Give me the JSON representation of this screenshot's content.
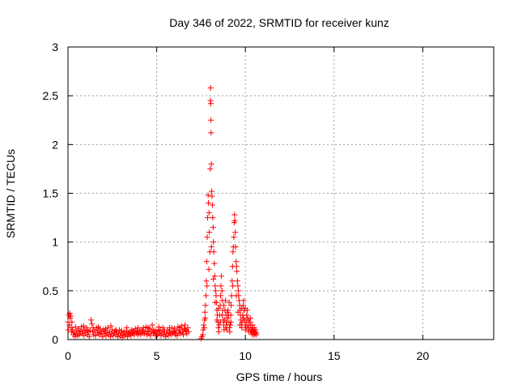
{
  "chart_data": {
    "type": "scatter",
    "title": "Day 346 of 2022, SRMTID for receiver kunz",
    "xlabel": "GPS time / hours",
    "ylabel": "SRMTID / TECUs",
    "xlim": [
      0,
      24
    ],
    "ylim": [
      0,
      3
    ],
    "xticks": [
      0,
      5,
      10,
      15,
      20
    ],
    "yticks": [
      0,
      0.5,
      1,
      1.5,
      2,
      2.5,
      3
    ],
    "ytick_labels": [
      "0",
      "0.5",
      "1",
      "1.5",
      "2",
      "2.5",
      "3"
    ],
    "grid": true,
    "marker": "+",
    "color": "#ff0000",
    "series": [
      {
        "name": "SRMTID",
        "points": [
          [
            0.0,
            0.18
          ],
          [
            0.05,
            0.25
          ],
          [
            0.1,
            0.27
          ],
          [
            0.12,
            0.22
          ],
          [
            0.15,
            0.24
          ],
          [
            0.18,
            0.12
          ],
          [
            0.2,
            0.08
          ],
          [
            0.25,
            0.1
          ],
          [
            0.3,
            0.05
          ],
          [
            0.35,
            0.07
          ],
          [
            0.4,
            0.03
          ],
          [
            0.45,
            0.06
          ],
          [
            0.5,
            0.09
          ],
          [
            0.55,
            0.04
          ],
          [
            0.6,
            0.11
          ],
          [
            0.65,
            0.05
          ],
          [
            0.7,
            0.08
          ],
          [
            0.75,
            0.13
          ],
          [
            0.8,
            0.06
          ],
          [
            0.85,
            0.09
          ],
          [
            0.9,
            0.04
          ],
          [
            0.95,
            0.1
          ],
          [
            1.0,
            0.07
          ],
          [
            1.05,
            0.12
          ],
          [
            1.1,
            0.05
          ],
          [
            1.15,
            0.08
          ],
          [
            1.2,
            0.03
          ],
          [
            1.25,
            0.09
          ],
          [
            1.3,
            0.2
          ],
          [
            1.35,
            0.16
          ],
          [
            1.4,
            0.08
          ],
          [
            1.45,
            0.05
          ],
          [
            1.5,
            0.1
          ],
          [
            1.55,
            0.04
          ],
          [
            1.6,
            0.12
          ],
          [
            1.65,
            0.07
          ],
          [
            1.7,
            0.09
          ],
          [
            1.75,
            0.05
          ],
          [
            1.8,
            0.11
          ],
          [
            1.85,
            0.06
          ],
          [
            1.9,
            0.08
          ],
          [
            1.95,
            0.03
          ],
          [
            2.0,
            0.1
          ],
          [
            2.05,
            0.06
          ],
          [
            2.1,
            0.09
          ],
          [
            2.15,
            0.04
          ],
          [
            2.2,
            0.07
          ],
          [
            2.25,
            0.12
          ],
          [
            2.3,
            0.05
          ],
          [
            2.35,
            0.08
          ],
          [
            2.4,
            0.03
          ],
          [
            2.45,
            0.06
          ],
          [
            2.5,
            0.1
          ],
          [
            2.55,
            0.04
          ],
          [
            2.6,
            0.07
          ],
          [
            2.65,
            0.09
          ],
          [
            2.7,
            0.05
          ],
          [
            2.75,
            0.08
          ],
          [
            2.8,
            0.03
          ],
          [
            2.85,
            0.06
          ],
          [
            2.9,
            0.1
          ],
          [
            2.95,
            0.04
          ],
          [
            3.0,
            0.07
          ],
          [
            3.05,
            0.02
          ],
          [
            3.1,
            0.05
          ],
          [
            3.15,
            0.08
          ],
          [
            3.2,
            0.04
          ],
          [
            3.25,
            0.06
          ],
          [
            3.3,
            0.09
          ],
          [
            3.35,
            0.03
          ],
          [
            3.4,
            0.07
          ],
          [
            3.45,
            0.05
          ],
          [
            3.5,
            0.08
          ],
          [
            3.55,
            0.04
          ],
          [
            3.6,
            0.1
          ],
          [
            3.65,
            0.06
          ],
          [
            3.7,
            0.09
          ],
          [
            3.75,
            0.05
          ],
          [
            3.8,
            0.11
          ],
          [
            3.85,
            0.07
          ],
          [
            3.9,
            0.08
          ],
          [
            3.95,
            0.12
          ],
          [
            4.0,
            0.06
          ],
          [
            4.05,
            0.09
          ],
          [
            4.1,
            0.05
          ],
          [
            4.15,
            0.1
          ],
          [
            4.2,
            0.07
          ],
          [
            4.25,
            0.12
          ],
          [
            4.3,
            0.06
          ],
          [
            4.35,
            0.08
          ],
          [
            4.4,
            0.13
          ],
          [
            4.45,
            0.05
          ],
          [
            4.5,
            0.09
          ],
          [
            4.55,
            0.06
          ],
          [
            4.6,
            0.11
          ],
          [
            4.65,
            0.04
          ],
          [
            4.7,
            0.08
          ],
          [
            4.75,
            0.15
          ],
          [
            4.8,
            0.1
          ],
          [
            4.85,
            0.06
          ],
          [
            4.9,
            0.09
          ],
          [
            4.95,
            0.04
          ],
          [
            5.0,
            0.08
          ],
          [
            5.05,
            0.05
          ],
          [
            5.1,
            0.1
          ],
          [
            5.15,
            0.06
          ],
          [
            5.2,
            0.09
          ],
          [
            5.25,
            0.04
          ],
          [
            5.3,
            0.07
          ],
          [
            5.35,
            0.12
          ],
          [
            5.4,
            0.05
          ],
          [
            5.45,
            0.08
          ],
          [
            5.5,
            0.03
          ],
          [
            5.55,
            0.06
          ],
          [
            5.6,
            0.1
          ],
          [
            5.65,
            0.04
          ],
          [
            5.7,
            0.07
          ],
          [
            5.75,
            0.09
          ],
          [
            5.8,
            0.05
          ],
          [
            5.85,
            0.12
          ],
          [
            5.9,
            0.06
          ],
          [
            5.95,
            0.08
          ],
          [
            6.0,
            0.11
          ],
          [
            6.05,
            0.05
          ],
          [
            6.1,
            0.09
          ],
          [
            6.15,
            0.04
          ],
          [
            6.2,
            0.13
          ],
          [
            6.25,
            0.07
          ],
          [
            6.3,
            0.1
          ],
          [
            6.35,
            0.06
          ],
          [
            6.4,
            0.14
          ],
          [
            6.45,
            0.08
          ],
          [
            6.5,
            0.05
          ],
          [
            6.55,
            0.11
          ],
          [
            6.6,
            0.15
          ],
          [
            6.65,
            0.09
          ],
          [
            6.7,
            0.06
          ],
          [
            6.75,
            0.12
          ],
          [
            6.8,
            0.08
          ],
          [
            0.02,
            0.1
          ],
          [
            0.08,
            0.15
          ],
          [
            0.22,
            0.18
          ],
          [
            0.42,
            0.13
          ],
          [
            0.62,
            0.09
          ],
          [
            0.88,
            0.14
          ],
          [
            1.08,
            0.1
          ],
          [
            1.42,
            0.12
          ],
          [
            1.72,
            0.13
          ],
          [
            2.12,
            0.11
          ],
          [
            2.42,
            0.14
          ],
          [
            2.72,
            0.1
          ],
          [
            3.02,
            0.09
          ],
          [
            3.32,
            0.12
          ],
          [
            3.62,
            0.07
          ],
          [
            3.92,
            0.05
          ],
          [
            4.22,
            0.09
          ],
          [
            4.52,
            0.12
          ],
          [
            4.82,
            0.07
          ],
          [
            5.12,
            0.13
          ],
          [
            5.42,
            0.1
          ],
          [
            5.72,
            0.12
          ],
          [
            6.02,
            0.07
          ],
          [
            6.32,
            0.12
          ],
          [
            6.62,
            0.1
          ],
          [
            7.5,
            0.01
          ],
          [
            7.55,
            0.03
          ],
          [
            7.6,
            0.05
          ],
          [
            7.62,
            0.1
          ],
          [
            7.65,
            0.15
          ],
          [
            7.7,
            0.2
          ],
          [
            7.72,
            0.28
          ],
          [
            7.75,
            0.35
          ],
          [
            7.78,
            0.45
          ],
          [
            7.8,
            0.6
          ],
          [
            7.82,
            0.8
          ],
          [
            7.85,
            1.05
          ],
          [
            7.87,
            1.25
          ],
          [
            7.9,
            1.48
          ],
          [
            7.92,
            1.4
          ],
          [
            7.95,
            1.3
          ],
          [
            7.97,
            1.1
          ],
          [
            8.0,
            0.9
          ],
          [
            8.02,
            1.75
          ],
          [
            8.03,
            2.45
          ],
          [
            8.04,
            2.58
          ],
          [
            8.05,
            2.42
          ],
          [
            8.06,
            2.25
          ],
          [
            8.07,
            2.12
          ],
          [
            8.08,
            1.8
          ],
          [
            8.1,
            1.52
          ],
          [
            8.12,
            1.47
          ],
          [
            8.14,
            1.38
          ],
          [
            8.16,
            1.25
          ],
          [
            8.18,
            1.15
          ],
          [
            8.2,
            1.0
          ],
          [
            8.22,
            0.9
          ],
          [
            8.25,
            0.78
          ],
          [
            8.28,
            0.65
          ],
          [
            8.3,
            0.55
          ],
          [
            8.32,
            0.5
          ],
          [
            8.35,
            0.45
          ],
          [
            8.38,
            0.38
          ],
          [
            8.4,
            0.3
          ],
          [
            8.42,
            0.25
          ],
          [
            8.45,
            0.18
          ],
          [
            8.48,
            0.12
          ],
          [
            8.5,
            0.08
          ],
          [
            8.52,
            0.15
          ],
          [
            8.55,
            0.25
          ],
          [
            8.58,
            0.35
          ],
          [
            8.6,
            0.45
          ],
          [
            8.62,
            0.55
          ],
          [
            8.65,
            0.65
          ],
          [
            8.68,
            0.5
          ],
          [
            8.7,
            0.4
          ],
          [
            8.72,
            0.3
          ],
          [
            8.75,
            0.2
          ],
          [
            8.78,
            0.15
          ],
          [
            8.8,
            0.1
          ],
          [
            8.82,
            0.2
          ],
          [
            8.85,
            0.3
          ],
          [
            8.88,
            0.4
          ],
          [
            8.9,
            0.25
          ],
          [
            8.92,
            0.18
          ],
          [
            8.95,
            0.1
          ],
          [
            8.98,
            0.15
          ],
          [
            9.0,
            0.22
          ],
          [
            9.02,
            0.3
          ],
          [
            9.05,
            0.25
          ],
          [
            9.08,
            0.18
          ],
          [
            9.1,
            0.12
          ],
          [
            9.12,
            0.08
          ],
          [
            9.15,
            0.15
          ],
          [
            9.18,
            0.25
          ],
          [
            9.2,
            0.35
          ],
          [
            9.22,
            0.45
          ],
          [
            9.25,
            0.6
          ],
          [
            9.28,
            0.75
          ],
          [
            9.3,
            0.9
          ],
          [
            9.32,
            0.95
          ],
          [
            9.35,
            1.05
          ],
          [
            9.37,
            1.2
          ],
          [
            9.39,
            1.28
          ],
          [
            9.41,
            1.22
          ],
          [
            9.43,
            1.1
          ],
          [
            9.45,
            0.95
          ],
          [
            9.48,
            0.8
          ],
          [
            9.5,
            0.75
          ],
          [
            9.52,
            0.7
          ],
          [
            9.55,
            0.6
          ],
          [
            9.58,
            0.55
          ],
          [
            9.6,
            0.5
          ],
          [
            9.62,
            0.45
          ],
          [
            9.65,
            0.4
          ],
          [
            9.68,
            0.35
          ],
          [
            9.7,
            0.3
          ],
          [
            9.72,
            0.25
          ],
          [
            9.75,
            0.2
          ],
          [
            9.78,
            0.15
          ],
          [
            9.8,
            0.12
          ],
          [
            9.82,
            0.18
          ],
          [
            9.85,
            0.25
          ],
          [
            9.88,
            0.35
          ],
          [
            9.9,
            0.4
          ],
          [
            9.92,
            0.3
          ],
          [
            9.95,
            0.2
          ],
          [
            9.98,
            0.15
          ],
          [
            10.0,
            0.1
          ],
          [
            10.02,
            0.12
          ],
          [
            10.05,
            0.18
          ],
          [
            10.08,
            0.25
          ],
          [
            10.1,
            0.3
          ],
          [
            10.12,
            0.22
          ],
          [
            10.15,
            0.15
          ],
          [
            10.18,
            0.1
          ],
          [
            10.2,
            0.08
          ],
          [
            10.22,
            0.12
          ],
          [
            10.25,
            0.18
          ],
          [
            10.28,
            0.22
          ],
          [
            10.3,
            0.15
          ],
          [
            10.32,
            0.1
          ],
          [
            10.35,
            0.08
          ],
          [
            10.38,
            0.12
          ],
          [
            10.4,
            0.15
          ],
          [
            10.42,
            0.1
          ],
          [
            10.45,
            0.07
          ],
          [
            10.48,
            0.09
          ],
          [
            10.5,
            0.12
          ],
          [
            10.52,
            0.08
          ],
          [
            10.55,
            0.06
          ],
          [
            10.58,
            0.1
          ],
          [
            10.6,
            0.07
          ],
          [
            10.62,
            0.05
          ],
          [
            7.68,
            0.12
          ],
          [
            7.74,
            0.22
          ],
          [
            7.84,
            0.55
          ],
          [
            7.94,
            0.72
          ],
          [
            8.09,
            0.95
          ],
          [
            8.19,
            0.62
          ],
          [
            8.29,
            0.38
          ],
          [
            8.39,
            0.2
          ],
          [
            8.49,
            0.32
          ],
          [
            8.59,
            0.18
          ],
          [
            8.69,
            0.25
          ],
          [
            8.79,
            0.35
          ],
          [
            8.89,
            0.12
          ],
          [
            8.99,
            0.28
          ],
          [
            9.09,
            0.38
          ],
          [
            9.19,
            0.18
          ],
          [
            9.29,
            0.55
          ],
          [
            9.49,
            0.45
          ],
          [
            9.59,
            0.28
          ],
          [
            9.69,
            0.15
          ],
          [
            9.79,
            0.32
          ],
          [
            9.89,
            0.22
          ],
          [
            9.99,
            0.32
          ],
          [
            10.09,
            0.12
          ],
          [
            10.19,
            0.2
          ],
          [
            10.29,
            0.08
          ],
          [
            10.39,
            0.05
          ],
          [
            10.49,
            0.05
          ]
        ]
      }
    ]
  }
}
